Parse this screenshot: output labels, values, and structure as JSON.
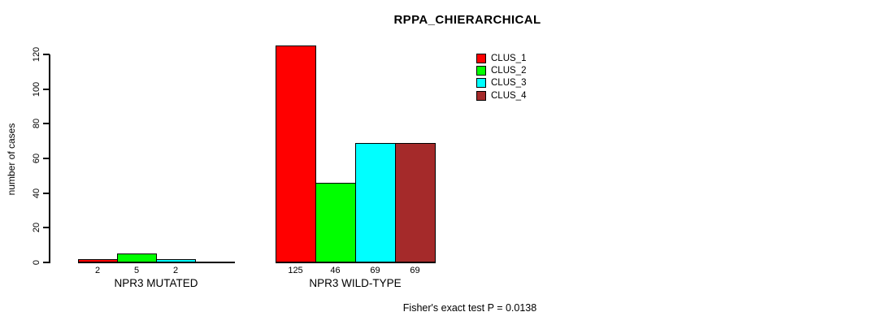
{
  "title": "RPPA_CHIERARCHICAL",
  "footer_note": "Fisher's exact test P = 0.0138",
  "chart_data": {
    "type": "bar",
    "title": "RPPA_CHIERARCHICAL",
    "xlabel": "",
    "ylabel": "number of cases",
    "ylim": [
      0,
      120
    ],
    "yticks": [
      0,
      20,
      40,
      60,
      80,
      100,
      120
    ],
    "grid": false,
    "legend_position": "top-right",
    "categories": [
      "NPR3 MUTATED",
      "NPR3 WILD-TYPE"
    ],
    "series": [
      {
        "name": "CLUS_1",
        "color": "#ff0000",
        "values": [
          2,
          125
        ]
      },
      {
        "name": "CLUS_2",
        "color": "#00ff00",
        "values": [
          5,
          46
        ]
      },
      {
        "name": "CLUS_3",
        "color": "#00ffff",
        "values": [
          2,
          69
        ]
      },
      {
        "name": "CLUS_4",
        "color": "#a52a2a",
        "values": [
          0,
          69
        ]
      }
    ],
    "bar_value_labels": [
      [
        "2",
        "5",
        "2",
        ""
      ],
      [
        "125",
        "46",
        "69",
        "69"
      ]
    ],
    "annotation": "Fisher's exact test P = 0.0138"
  }
}
